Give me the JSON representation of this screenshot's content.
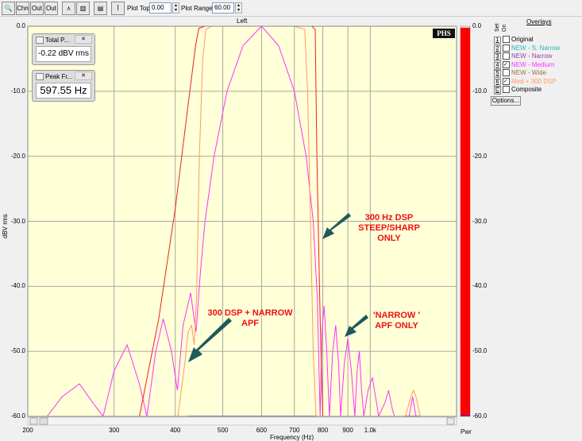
{
  "toolbar": {
    "buttons": [
      {
        "icon": "zoom-icon",
        "label": ""
      },
      {
        "icon": "channel-1-icon",
        "label": "Chn"
      },
      {
        "icon": "output-icon",
        "label": "Out"
      },
      {
        "icon": "output-all-icon",
        "label": "Out"
      },
      {
        "icon": "line-view-icon",
        "label": ""
      },
      {
        "icon": "bar-view-icon",
        "label": ""
      },
      {
        "icon": "panel-icon",
        "label": ""
      },
      {
        "icon": "cursor-icon",
        "label": ""
      }
    ],
    "plot_top_label": "Plot Top:",
    "plot_top_value": "0.00",
    "plot_range_label": "Plot Range:",
    "plot_range_value": "60.00"
  },
  "channel_title": "Left",
  "logo": "PHS",
  "widgets": [
    {
      "title": "Total P...",
      "value": "-0.22 dBV rms"
    },
    {
      "title": "Peak Fr...",
      "value": "597.55 Hz"
    }
  ],
  "overlays": {
    "title": "Overlays",
    "col_set": "Set",
    "col_on": "On",
    "items": [
      {
        "key": "1",
        "label": "Original",
        "checked": false,
        "color": "#000000"
      },
      {
        "key": "2",
        "label": "NEW - S. Narrow",
        "checked": false,
        "color": "#2ab5b5"
      },
      {
        "key": "3",
        "label": "NEW - Narrow",
        "checked": false,
        "color": "#9a3fa8"
      },
      {
        "key": "4",
        "label": "NEW - Medium",
        "checked": true,
        "color": "#ff30ff"
      },
      {
        "key": "5",
        "label": "NEW - Wide",
        "checked": false,
        "color": "#a0703a"
      },
      {
        "key": "6",
        "label": "Med + 300 DSP",
        "checked": true,
        "color": "#ff9a60"
      },
      {
        "key": "C",
        "label": "Composite",
        "checked": false,
        "color": "#000000"
      }
    ],
    "options_label": "Options..."
  },
  "annotations": [
    {
      "text": "300 Hz DSP\nSTEEP/SHARP\nONLY"
    },
    {
      "text": "300 DSP + NARROW\nAPF"
    },
    {
      "text": "'NARROW '\nAPF ONLY"
    }
  ],
  "pwr_label": "Pwr",
  "pwr_level_db": -0.22,
  "chart_data": {
    "type": "line",
    "xlabel": "Frequency (Hz)",
    "ylabel": "dBV rms",
    "x_scale": "log",
    "xlim": [
      200,
      1500
    ],
    "ylim": [
      -60,
      0
    ],
    "grid": true,
    "x_ticks": [
      {
        "v": 200,
        "l": "200"
      },
      {
        "v": 300,
        "l": "300"
      },
      {
        "v": 400,
        "l": "400"
      },
      {
        "v": 500,
        "l": "500"
      },
      {
        "v": 600,
        "l": "600"
      },
      {
        "v": 700,
        "l": "700"
      },
      {
        "v": 800,
        "l": "800"
      },
      {
        "v": 900,
        "l": "900"
      },
      {
        "v": 1000,
        "l": "1.0k"
      }
    ],
    "y_ticks": [
      {
        "v": 0,
        "l": "0.0"
      },
      {
        "v": -10,
        "l": "-10.0"
      },
      {
        "v": -20,
        "l": "-20.0"
      },
      {
        "v": -30,
        "l": "-30.0"
      },
      {
        "v": -40,
        "l": "-40.0"
      },
      {
        "v": -50,
        "l": "-50.0"
      },
      {
        "v": -60,
        "l": "-60.0"
      }
    ],
    "series": [
      {
        "color": "#ff30ff",
        "points": [
          [
            219,
            -60
          ],
          [
            235,
            -57
          ],
          [
            255,
            -55
          ],
          [
            272,
            -58
          ],
          [
            285,
            -60
          ],
          [
            300,
            -53
          ],
          [
            319,
            -49
          ],
          [
            338,
            -55
          ],
          [
            350,
            -60
          ],
          [
            365,
            -50
          ],
          [
            378,
            -45
          ],
          [
            393,
            -50
          ],
          [
            404,
            -56
          ],
          [
            415,
            -46
          ],
          [
            430,
            -41
          ],
          [
            437,
            -45
          ],
          [
            441,
            -47
          ],
          [
            450,
            -38
          ],
          [
            460,
            -30
          ],
          [
            480,
            -20
          ],
          [
            510,
            -10
          ],
          [
            550,
            -3
          ],
          [
            600,
            0
          ],
          [
            650,
            -3
          ],
          [
            700,
            -10
          ],
          [
            740,
            -20
          ],
          [
            765,
            -30
          ],
          [
            780,
            -42
          ],
          [
            790,
            -60
          ],
          [
            797,
            -47
          ],
          [
            805,
            -43
          ],
          [
            815,
            -50
          ],
          [
            825,
            -60
          ],
          [
            838,
            -50
          ],
          [
            850,
            -46
          ],
          [
            862,
            -52
          ],
          [
            870,
            -60
          ],
          [
            885,
            -52
          ],
          [
            900,
            -48
          ],
          [
            915,
            -53
          ],
          [
            930,
            -60
          ],
          [
            940,
            -53
          ],
          [
            950,
            -50
          ],
          [
            960,
            -56
          ],
          [
            970,
            -60
          ],
          [
            990,
            -56
          ],
          [
            1010,
            -54
          ],
          [
            1030,
            -58
          ],
          [
            1040,
            -60
          ],
          [
            1070,
            -58
          ],
          [
            1090,
            -56
          ],
          [
            1110,
            -59
          ],
          [
            1120,
            -60
          ],
          [
            1200,
            -60
          ],
          [
            1220,
            -57
          ],
          [
            1240,
            -60
          ]
        ]
      },
      {
        "color": "#ff9a60",
        "points": [
          [
            405,
            -60
          ],
          [
            418,
            -52
          ],
          [
            425,
            -47
          ],
          [
            432,
            -46
          ],
          [
            437,
            -49
          ],
          [
            442,
            -42
          ],
          [
            448,
            -20
          ],
          [
            455,
            -5
          ],
          [
            462,
            -0.5
          ],
          [
            475,
            0
          ],
          [
            700,
            0
          ],
          [
            735,
            -0.5
          ],
          [
            745,
            -10
          ],
          [
            755,
            -30
          ],
          [
            765,
            -50
          ],
          [
            775,
            -60
          ],
          [
            1180,
            -60
          ],
          [
            1210,
            -57
          ],
          [
            1225,
            -56
          ],
          [
            1240,
            -57
          ],
          [
            1265,
            -60
          ],
          [
            1500,
            -60
          ]
        ]
      },
      {
        "color": "#f02020",
        "points": [
          [
            338,
            -60
          ],
          [
            370,
            -45
          ],
          [
            400,
            -28
          ],
          [
            425,
            -12
          ],
          [
            440,
            -3
          ],
          [
            447,
            -0.3
          ],
          [
            460,
            0
          ],
          [
            760,
            0
          ],
          [
            772,
            -0.5
          ],
          [
            778,
            -20
          ],
          [
            790,
            -45
          ],
          [
            800,
            -60
          ]
        ]
      },
      {
        "color": "#2030ff",
        "points": [
          [
            422,
            -60
          ],
          [
            775,
            -60
          ]
        ]
      },
      {
        "color": "#2030ff",
        "points": [
          [
            1180,
            -60
          ],
          [
            1265,
            -60
          ]
        ]
      }
    ]
  }
}
